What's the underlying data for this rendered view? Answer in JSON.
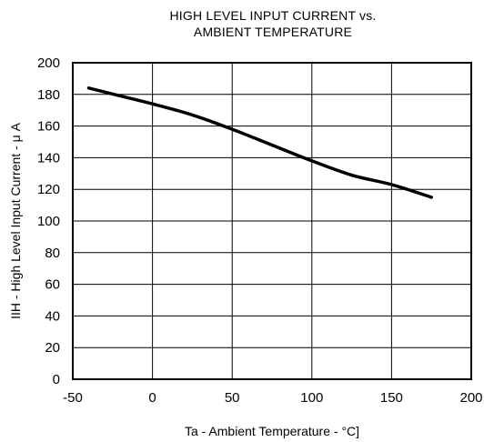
{
  "chart_data": {
    "type": "line",
    "title_line1": "HIGH LEVEL INPUT CURRENT  vs.",
    "title_line2": "AMBIENT  TEMPERATURE",
    "xlabel": "Ta - Ambient Temperature - °C]",
    "ylabel": "IIH - High Level Input Current -  μ A",
    "xlim": [
      -50,
      200
    ],
    "ylim": [
      0,
      200
    ],
    "xticks": [
      -50,
      0,
      50,
      100,
      150,
      200
    ],
    "yticks": [
      0,
      20,
      40,
      60,
      80,
      100,
      120,
      140,
      160,
      180,
      200
    ],
    "grid": true,
    "series": [
      {
        "x": [
          -40,
          -20,
          0,
          25,
          50,
          75,
          100,
          125,
          150,
          175
        ],
        "y": [
          184,
          179,
          174,
          167,
          158,
          148,
          138,
          129,
          123,
          115
        ]
      }
    ]
  }
}
